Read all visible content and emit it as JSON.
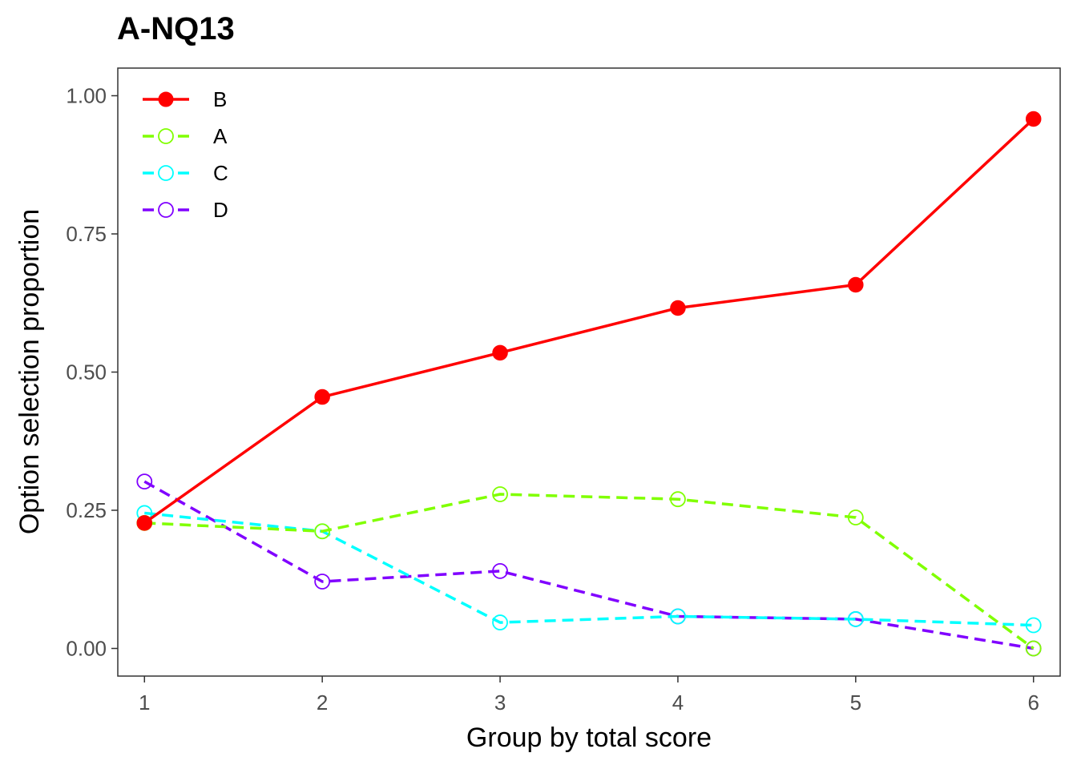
{
  "chart_data": {
    "type": "line",
    "title": "A-NQ13",
    "xlabel": "Group by total score",
    "ylabel": "Option selection proportion",
    "x": [
      1,
      2,
      3,
      4,
      5,
      6
    ],
    "xlim": [
      0.85,
      6.15
    ],
    "ylim": [
      -0.05,
      1.05
    ],
    "yticks": [
      0.0,
      0.25,
      0.5,
      0.75,
      1.0
    ],
    "ytick_labels": [
      "0.00",
      "0.25",
      "0.50",
      "0.75",
      "1.00"
    ],
    "xtick_labels": [
      "1",
      "2",
      "3",
      "4",
      "5",
      "6"
    ],
    "grid": false,
    "legend_position": "top-left",
    "series": [
      {
        "name": "B",
        "color": "#FF0000",
        "dashed": false,
        "filled": true,
        "values": [
          0.227,
          0.455,
          0.535,
          0.616,
          0.658,
          0.958
        ]
      },
      {
        "name": "A",
        "color": "#80FF00",
        "dashed": true,
        "filled": false,
        "values": [
          0.227,
          0.212,
          0.279,
          0.27,
          0.237,
          0.0
        ]
      },
      {
        "name": "C",
        "color": "#00FFFF",
        "dashed": true,
        "filled": false,
        "values": [
          0.245,
          0.212,
          0.047,
          0.058,
          0.053,
          0.042
        ]
      },
      {
        "name": "D",
        "color": "#8000FF",
        "dashed": true,
        "filled": false,
        "values": [
          0.302,
          0.121,
          0.14,
          0.058,
          0.053,
          0.0
        ]
      }
    ]
  }
}
